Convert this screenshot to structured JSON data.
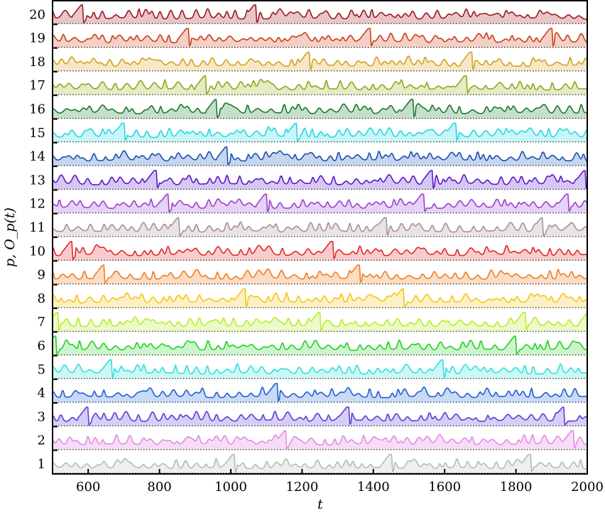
{
  "chart_data": {
    "type": "line",
    "title": "",
    "xlabel": "t",
    "ylabel": "p, O_p(t)",
    "xlim": [
      500,
      2000
    ],
    "ylim": [
      0.7,
      20.7
    ],
    "x_ticks": [
      600,
      800,
      1000,
      1200,
      1400,
      1600,
      1800,
      2000
    ],
    "y_ticks": [
      1,
      2,
      3,
      4,
      5,
      6,
      7,
      8,
      9,
      10,
      11,
      12,
      13,
      14,
      15,
      16,
      17,
      18,
      19,
      20
    ],
    "grid": false,
    "legend": null,
    "baseline_style": "dotted black line under each series",
    "fill": "each series filled semi-transparent down to its baseline",
    "series": [
      {
        "name": "1",
        "color": "#b8b8b8",
        "fill": "#eeeeee",
        "spikes_t": [
          1005,
          1445,
          1835
        ]
      },
      {
        "name": "2",
        "color": "#e08ce0",
        "fill": "#f7dcf7",
        "spikes_t": [
          1150,
          1955
        ]
      },
      {
        "name": "3",
        "color": "#5a3fd0",
        "fill": "#d8cdf7",
        "spikes_t": [
          595,
          1325,
          1930
        ]
      },
      {
        "name": "4",
        "color": "#1f5fd0",
        "fill": "#c9daf7",
        "spikes_t": [
          1125
        ]
      },
      {
        "name": "5",
        "color": "#2ee0e0",
        "fill": "#ccf7f5",
        "spikes_t": [
          660,
          1590
        ]
      },
      {
        "name": "6",
        "color": "#22d022",
        "fill": "#cdf5cd",
        "spikes_t": [
          505,
          1795
        ]
      },
      {
        "name": "7",
        "color": "#b8ee22",
        "fill": "#ecf9c8",
        "spikes_t": [
          510,
          1245,
          1820,
          2000
        ]
      },
      {
        "name": "8",
        "color": "#f5c518",
        "fill": "#fdf0c4",
        "spikes_t": [
          1035,
          1480
        ]
      },
      {
        "name": "9",
        "color": "#ee7f22",
        "fill": "#fbdcc4",
        "spikes_t": [
          640,
          1355
        ]
      },
      {
        "name": "10",
        "color": "#e02828",
        "fill": "#f8cccc",
        "spikes_t": [
          550,
          1280
        ]
      },
      {
        "name": "11",
        "color": "#a89090",
        "fill": "#ebe3e3",
        "spikes_t": [
          850,
          1430,
          1870
        ]
      },
      {
        "name": "12",
        "color": "#9b3fd0",
        "fill": "#e6d2f5",
        "spikes_t": [
          820,
          1095,
          1535,
          1940
        ]
      },
      {
        "name": "13",
        "color": "#5a18c8",
        "fill": "#d6c7f3",
        "spikes_t": [
          785,
          1560,
          1990
        ]
      },
      {
        "name": "14",
        "color": "#1a4fb0",
        "fill": "#c6d5ef",
        "spikes_t": [
          985
        ]
      },
      {
        "name": "15",
        "color": "#22d8e0",
        "fill": "#c8f5f7",
        "spikes_t": [
          695,
          1180,
          1625
        ]
      },
      {
        "name": "16",
        "color": "#1a7a2a",
        "fill": "#c6dfca",
        "spikes_t": [
          955,
          1505
        ]
      },
      {
        "name": "17",
        "color": "#8aaa1a",
        "fill": "#e3ecc4",
        "spikes_t": [
          925,
          1655
        ]
      },
      {
        "name": "18",
        "color": "#d4a020",
        "fill": "#f6e8c6",
        "spikes_t": [
          1215,
          1670
        ]
      },
      {
        "name": "19",
        "color": "#c8401a",
        "fill": "#f3cfc5",
        "spikes_t": [
          875,
          1385,
          1895
        ]
      },
      {
        "name": "20",
        "color": "#9a1a22",
        "fill": "#e8c6c8",
        "spikes_t": [
          580,
          1065
        ]
      }
    ]
  }
}
